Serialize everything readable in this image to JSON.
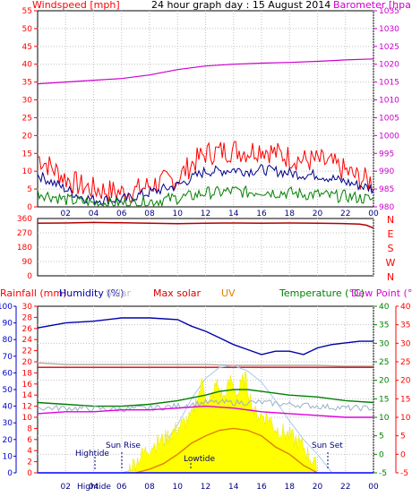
{
  "chart_data": [
    {
      "type": "line",
      "title": "24 hour graph day : 15 August 2014",
      "ylabel_left": "Windspeed [mph]",
      "ylabel_right": "Barometer [hpa]",
      "x_ticks": [
        "02",
        "04",
        "06",
        "08",
        "10",
        "12",
        "14",
        "16",
        "18",
        "20",
        "22",
        "00"
      ],
      "x_range_hours": [
        0,
        24
      ],
      "ylim_left": [
        0,
        55
      ],
      "yticks_left": [
        0,
        5,
        10,
        15,
        20,
        25,
        30,
        35,
        40,
        45,
        50,
        55
      ],
      "ylim_right": [
        980,
        1035
      ],
      "yticks_right": [
        980,
        985,
        990,
        995,
        1000,
        1005,
        1010,
        1015,
        1020,
        1025,
        1030,
        1035
      ],
      "grid": true,
      "series": [
        {
          "name": "Windspeed [mph]",
          "axis": "left",
          "color": "#ff0000",
          "x": [
            0,
            1,
            2,
            3,
            4,
            5,
            6,
            7,
            8,
            9,
            10,
            11,
            12,
            13,
            14,
            15,
            16,
            17,
            18,
            19,
            20,
            21,
            22,
            23,
            24
          ],
          "y": [
            14,
            11,
            8,
            6,
            5,
            4.5,
            4,
            4.5,
            6,
            7,
            8,
            12,
            15,
            15.5,
            16,
            15.5,
            16.5,
            15,
            14,
            13,
            13,
            12,
            10,
            8,
            7
          ]
        },
        {
          "name": "",
          "axis": "left",
          "color": "#00008b",
          "x": [
            0,
            1,
            2,
            3,
            4,
            5,
            6,
            7,
            8,
            9,
            10,
            11,
            12,
            13,
            14,
            15,
            16,
            17,
            18,
            19,
            20,
            21,
            22,
            23,
            24
          ],
          "y": [
            9,
            7,
            5,
            3,
            2,
            2,
            2,
            3,
            4,
            5,
            6,
            8,
            10,
            10,
            10.5,
            10,
            10.5,
            10,
            9.5,
            9,
            9,
            8,
            7,
            6,
            5
          ]
        },
        {
          "name": "",
          "axis": "left",
          "color": "#008000",
          "x": [
            0,
            1,
            2,
            3,
            4,
            5,
            6,
            7,
            8,
            9,
            10,
            11,
            12,
            13,
            14,
            15,
            16,
            17,
            18,
            19,
            20,
            21,
            22,
            23,
            24
          ],
          "y": [
            4,
            3,
            2,
            1.5,
            1,
            1,
            1,
            1,
            1.5,
            2,
            2.5,
            3,
            4,
            4,
            4.5,
            4,
            4.5,
            4,
            4,
            3.5,
            3.5,
            3,
            3,
            2.5,
            2
          ]
        },
        {
          "name": "Barometer [hpa]",
          "axis": "right",
          "color": "#cc00cc",
          "x": [
            0,
            2,
            4,
            6,
            8,
            10,
            12,
            14,
            16,
            18,
            20,
            22,
            24
          ],
          "y": [
            1014.5,
            1015,
            1015.5,
            1016,
            1017,
            1018.5,
            1019.5,
            1020,
            1020.3,
            1020.5,
            1020.8,
            1021.2,
            1021.5
          ]
        }
      ]
    },
    {
      "type": "line",
      "x_range_hours": [
        0,
        24
      ],
      "ylim": [
        0,
        360
      ],
      "yticks": [
        0,
        90,
        180,
        270,
        360
      ],
      "direction_labels": [
        "N",
        "W",
        "S",
        "E",
        "N"
      ],
      "grid": true,
      "series": [
        {
          "name": "",
          "color": "#b30000",
          "x": [
            0,
            2,
            4,
            6,
            8,
            10,
            12,
            14,
            16,
            18,
            20,
            22,
            23,
            23.5,
            24
          ],
          "y": [
            330,
            332,
            335,
            333,
            330,
            328,
            330,
            332,
            330,
            332,
            330,
            328,
            325,
            318,
            300
          ]
        }
      ]
    },
    {
      "type": "line",
      "x_ticks": [
        "02",
        "04",
        "06",
        "08",
        "10",
        "12",
        "14",
        "16",
        "18",
        "20",
        "22",
        "00"
      ],
      "x_range_hours": [
        0,
        24
      ],
      "legend": [
        "Rainfall (mm)",
        "Humidity (%)",
        "Solar",
        "Max solar",
        "UV",
        "Temperature (°C)",
        "Dew Point (°C)"
      ],
      "axes": {
        "rainfall": {
          "ticks": [
            0,
            2,
            4,
            6,
            8,
            10,
            12,
            14,
            16,
            18,
            20,
            22,
            24,
            26,
            28,
            30
          ]
        },
        "humidity": {
          "ticks": [
            0,
            10,
            20,
            30,
            40,
            50,
            60,
            70,
            80,
            90,
            100
          ]
        },
        "temperature": {
          "ticks": [
            -5,
            0,
            5,
            10,
            15,
            20,
            25,
            30,
            35,
            40
          ]
        },
        "dew_point": {
          "ticks": [
            -5,
            0,
            5,
            10,
            15,
            20,
            25,
            30,
            35,
            40
          ]
        }
      },
      "annotations": [
        "Hightide",
        "Sun Rise",
        "Lowtide",
        "Sun Set"
      ],
      "bottom_overlap_label": "Hightide",
      "grid": true,
      "series": [
        {
          "name": "Humidity (%)",
          "axis": "humidity",
          "color": "#0000aa",
          "x": [
            0,
            2,
            4,
            6,
            8,
            10,
            11,
            12,
            13,
            14,
            15,
            16,
            17,
            18,
            19,
            20,
            21,
            22,
            23,
            24
          ],
          "y": [
            87,
            90,
            91,
            93,
            93,
            92,
            88,
            85,
            81,
            77,
            74,
            71,
            73,
            73,
            71,
            75,
            77,
            78,
            79,
            79
          ]
        },
        {
          "name": "",
          "axis": "humidity",
          "color": "#aaaaaa",
          "x": [
            0,
            2,
            4,
            6,
            8,
            10,
            12,
            14,
            16,
            18,
            20,
            22,
            24
          ],
          "y": [
            66,
            65,
            65,
            65,
            65,
            65,
            65,
            64.5,
            64.5,
            64.5,
            64.5,
            64,
            64
          ]
        },
        {
          "name": "",
          "axis": "temperature",
          "color": "#dd0000",
          "x": [
            0,
            6,
            12,
            18,
            24
          ],
          "y": [
            23.5,
            23.5,
            23.5,
            23.5,
            23.5
          ]
        },
        {
          "name": "Max solar",
          "axis": "temperature",
          "color": "#a8c8f0",
          "x": [
            6,
            7,
            8,
            9,
            10,
            11,
            12,
            13,
            14,
            15,
            16,
            17,
            18,
            19,
            20,
            21
          ],
          "y": [
            -5,
            -4,
            -1.5,
            2.5,
            8,
            15,
            20.5,
            23.5,
            24,
            22.5,
            19.5,
            14.5,
            9,
            4,
            0,
            -4.8
          ]
        },
        {
          "name": "Solar",
          "axis": "temperature",
          "color": "#ffff00",
          "x": [
            6.5,
            8,
            9,
            10,
            11,
            11.8,
            12.2,
            12.8,
            13.3,
            13.8,
            14.3,
            14.8,
            15.5,
            16.5,
            17,
            18,
            19,
            20
          ],
          "y": [
            -4,
            2,
            4,
            7,
            10,
            20,
            13,
            19,
            15,
            20,
            16,
            21,
            11,
            10,
            7,
            5,
            2,
            -4
          ]
        },
        {
          "name": "UV",
          "axis": "temperature",
          "color": "#e08000",
          "x": [
            7,
            8,
            9,
            10,
            11,
            12,
            13,
            14,
            15,
            16,
            17,
            18,
            19,
            20
          ],
          "y": [
            -5,
            -4,
            -2.5,
            0,
            3,
            5,
            6.5,
            7,
            6.5,
            5,
            2,
            0,
            -3,
            -5
          ]
        },
        {
          "name": "Temperature (°C)",
          "axis": "temperature",
          "color": "#008000",
          "x": [
            0,
            2,
            4,
            6,
            8,
            10,
            12,
            13,
            14,
            15,
            16,
            18,
            20,
            22,
            24
          ],
          "y": [
            14,
            13.5,
            13,
            13,
            13.5,
            14.5,
            16,
            17,
            17.5,
            17.5,
            17,
            16,
            15.5,
            14.5,
            14
          ]
        },
        {
          "name": "",
          "axis": "temperature",
          "color": "#9bb0c8",
          "x": [
            0,
            2,
            4,
            6,
            8,
            10,
            12,
            14,
            16,
            18,
            20,
            22,
            24
          ],
          "y": [
            12.5,
            12.5,
            12.3,
            12.2,
            12.5,
            13,
            14,
            14,
            14,
            13.5,
            13,
            12.5,
            12.5
          ]
        },
        {
          "name": "Dew Point (°C)",
          "axis": "dew_point",
          "color": "#dd00dd",
          "x": [
            0,
            2,
            4,
            6,
            8,
            10,
            12,
            14,
            16,
            18,
            20,
            22,
            24
          ],
          "y": [
            11,
            11.5,
            11.5,
            12,
            12,
            12.5,
            13,
            12.5,
            11.5,
            11,
            10.5,
            10,
            10
          ]
        },
        {
          "name": "Rainfall (mm)",
          "axis": "rainfall",
          "color": "#0000ff",
          "x": [
            0,
            24
          ],
          "y": [
            0,
            0
          ]
        }
      ]
    }
  ]
}
